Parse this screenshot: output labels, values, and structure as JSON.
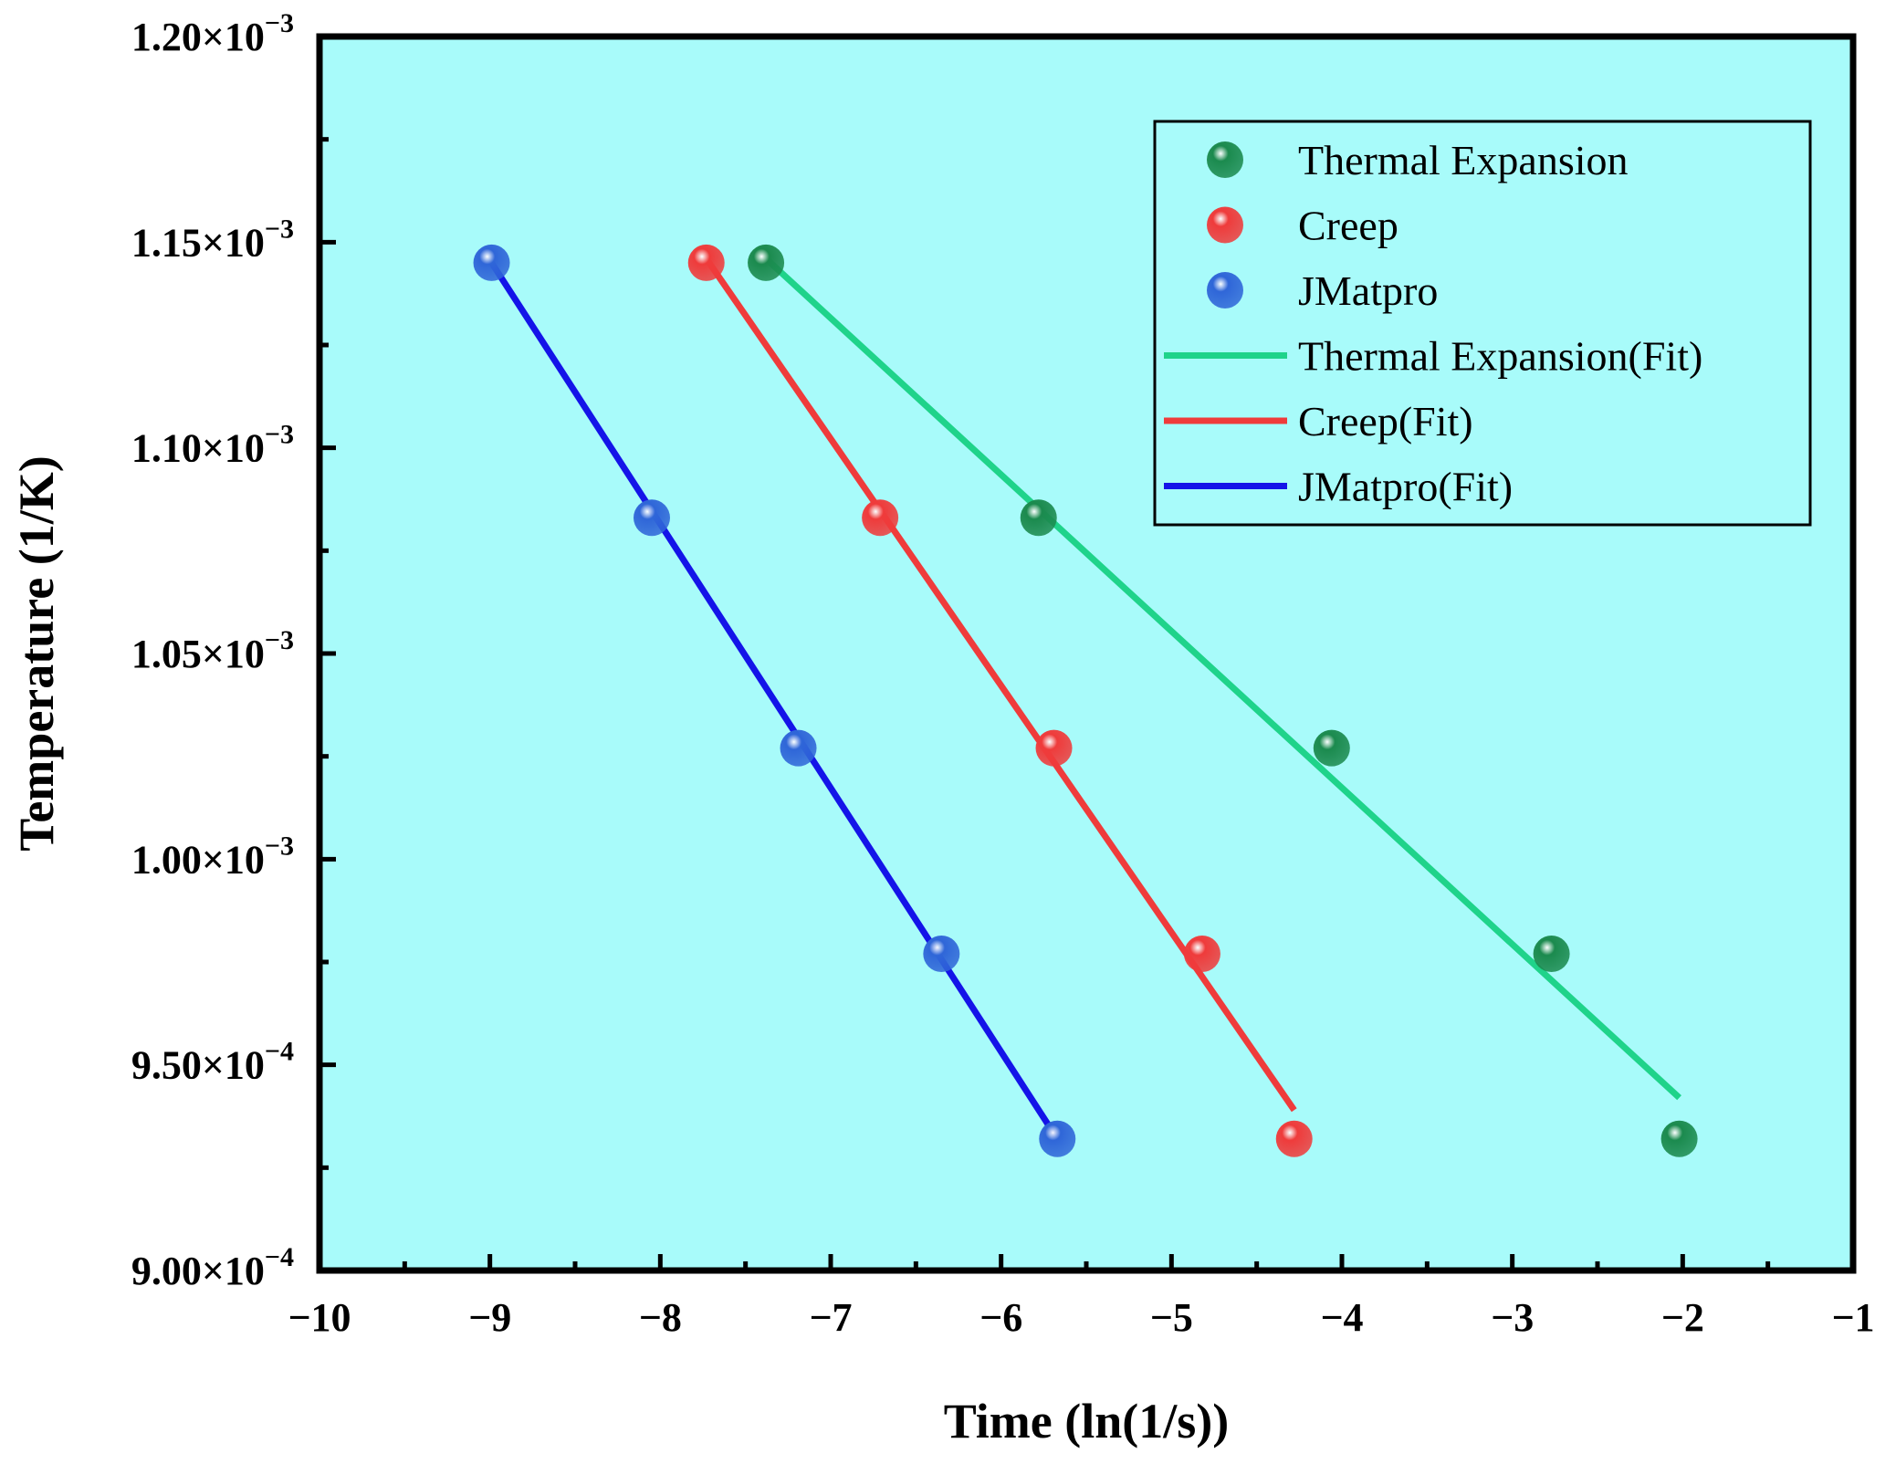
{
  "chart_data": {
    "type": "scatter",
    "title": "",
    "xlabel": "Time (ln(1/s))",
    "ylabel": "Temperature (1/K)",
    "xlim": [
      -10,
      -1
    ],
    "ylim": [
      0.0009,
      0.0012
    ],
    "x_ticks": [
      -10,
      -9,
      -8,
      -7,
      -6,
      -5,
      -4,
      -3,
      -2,
      -1
    ],
    "x_tick_labels": [
      "−10",
      "−9",
      "−8",
      "−7",
      "−6",
      "−5",
      "−4",
      "−3",
      "−2",
      "−1"
    ],
    "y_ticks": [
      {
        "value": 0.0009,
        "mantissa": "9.00",
        "exponent": "−4"
      },
      {
        "value": 0.00095,
        "mantissa": "9.50",
        "exponent": "−4"
      },
      {
        "value": 0.001,
        "mantissa": "1.00",
        "exponent": "−3"
      },
      {
        "value": 0.00105,
        "mantissa": "1.05",
        "exponent": "−3"
      },
      {
        "value": 0.0011,
        "mantissa": "1.10",
        "exponent": "−3"
      },
      {
        "value": 0.00115,
        "mantissa": "1.15",
        "exponent": "−3"
      },
      {
        "value": 0.0012,
        "mantissa": "1.20",
        "exponent": "−3"
      }
    ],
    "background_color": "#a8fbfa",
    "grid": false,
    "legend_position": "top-right",
    "series": [
      {
        "name": "Thermal Expansion",
        "kind": "points",
        "color": "#1b8a4e",
        "x": [
          -7.38,
          -5.78,
          -4.06,
          -2.77,
          -2.02
        ],
        "y": [
          0.001145,
          0.001083,
          0.001027,
          0.000977,
          0.000932
        ]
      },
      {
        "name": "Creep",
        "kind": "points",
        "color": "#ef3b3b",
        "x": [
          -7.73,
          -6.71,
          -5.69,
          -4.82,
          -4.28
        ],
        "y": [
          0.001145,
          0.001083,
          0.001027,
          0.000977,
          0.000932
        ]
      },
      {
        "name": "JMatpro",
        "kind": "points",
        "color": "#2f66d8",
        "x": [
          -8.99,
          -8.05,
          -7.19,
          -6.35,
          -5.67
        ],
        "y": [
          0.001145,
          0.001083,
          0.001027,
          0.000977,
          0.000932
        ]
      },
      {
        "name": "Thermal Expansion(Fit)",
        "kind": "line",
        "color": "#1fd38a",
        "x": [
          -7.38,
          -2.02
        ],
        "y": [
          0.001146,
          0.000942
        ]
      },
      {
        "name": "Creep(Fit)",
        "kind": "line",
        "color": "#ef3b3b",
        "x": [
          -7.73,
          -4.28
        ],
        "y": [
          0.001146,
          0.000939
        ]
      },
      {
        "name": "JMatpro(Fit)",
        "kind": "line",
        "color": "#1414e8",
        "x": [
          -8.99,
          -5.67
        ],
        "y": [
          0.001145,
          0.000932
        ]
      }
    ]
  }
}
